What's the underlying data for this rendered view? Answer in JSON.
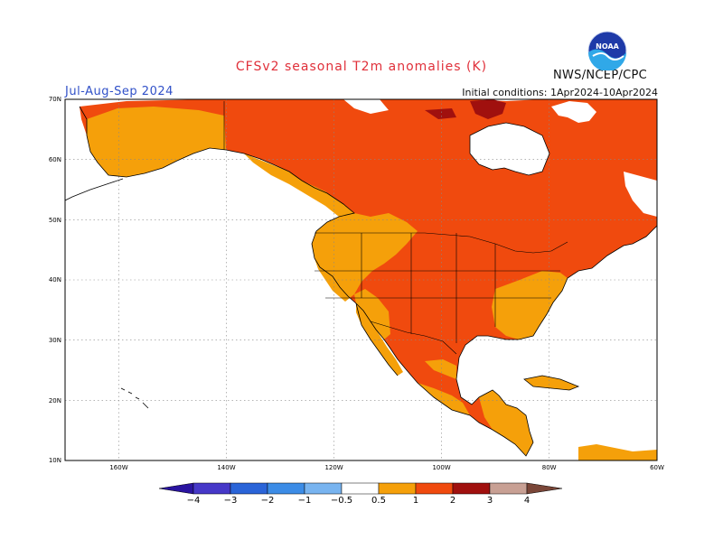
{
  "title": "CFSv2 seasonal T2m anomalies (K)",
  "season": "Jul-Aug-Sep 2024",
  "initial_conditions": "Initial conditions: 1Apr2024-10Apr2024",
  "agency": "NWS/NCEP/CPC",
  "logo_text": "NOAA",
  "colors": {
    "title": "#e0303a",
    "season": "#3050c8",
    "lt_m4": "#2a14a0",
    "m4_m3": "#4638c8",
    "m3_m2": "#2a64d8",
    "m2_m1": "#3c8ce6",
    "m1_m05": "#78b4f0",
    "p05_1": "#f5a00a",
    "p1_2": "#f04a0e",
    "p2_3": "#a0100e",
    "p3_4": "#c8a094",
    "gt_4": "#7a4638",
    "land_outline": "#000000",
    "grid": "#888888"
  },
  "lat_ticks": [
    "70N",
    "60N",
    "50N",
    "40N",
    "30N",
    "20N",
    "10N"
  ],
  "lon_ticks": [
    "160W",
    "140W",
    "120W",
    "100W",
    "80W",
    "60W"
  ],
  "colorbar_labels": [
    "−4",
    "−3",
    "−2",
    "−1",
    "−0.5",
    "0.5",
    "1",
    "2",
    "3",
    "4"
  ]
}
